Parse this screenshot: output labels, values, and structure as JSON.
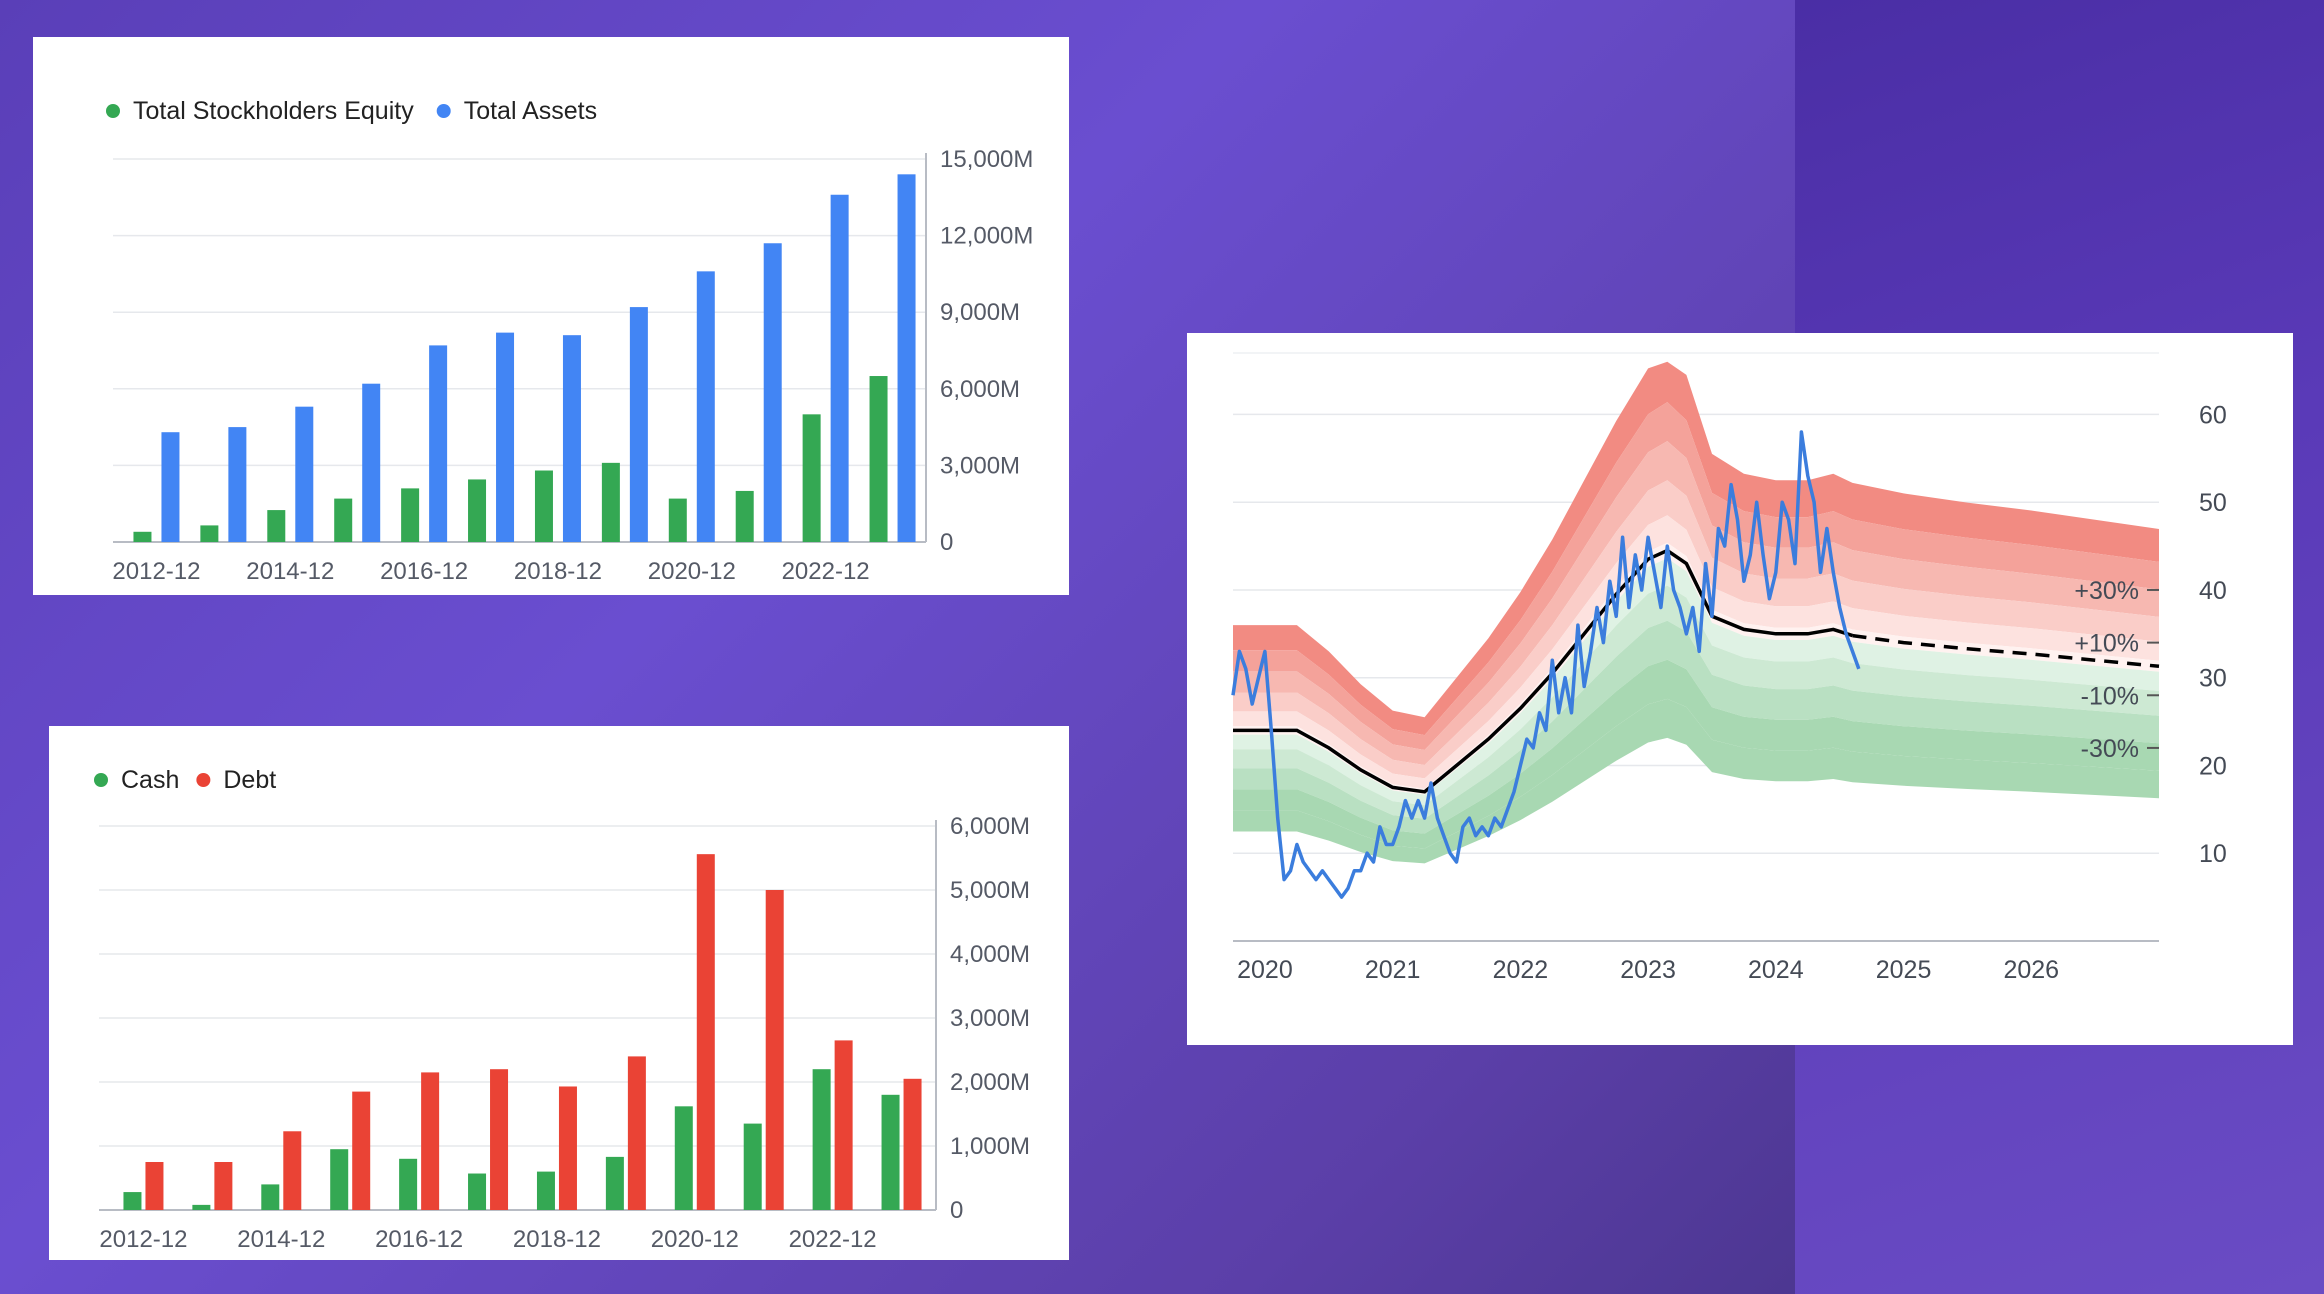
{
  "charts": {
    "equity_assets": {
      "chart_data": {
        "type": "bar",
        "categories": [
          "2012-12",
          "2013-12",
          "2014-12",
          "2015-12",
          "2016-12",
          "2017-12",
          "2018-12",
          "2019-12",
          "2020-12",
          "2021-12",
          "2022-12",
          "2023-12"
        ],
        "x_tick_labels": [
          "2012-12",
          "2014-12",
          "2016-12",
          "2018-12",
          "2020-12",
          "2022-12"
        ],
        "series": [
          {
            "name": "Total Stockholders Equity",
            "color": "#34a853",
            "values": [
              400,
              650,
              1250,
              1700,
              2100,
              2450,
              2800,
              3100,
              1700,
              2000,
              5000,
              6500
            ]
          },
          {
            "name": "Total Assets",
            "color": "#4285f4",
            "values": [
              4300,
              4500,
              5300,
              6200,
              7700,
              8200,
              8100,
              9200,
              10600,
              11700,
              13600,
              14400
            ]
          }
        ],
        "ylim": [
          0,
          15000
        ],
        "y_ticks": [
          0,
          3000,
          6000,
          9000,
          12000,
          15000
        ],
        "y_tick_labels": [
          "0",
          "3,000M",
          "6,000M",
          "9,000M",
          "12,000M",
          "15,000M"
        ],
        "legend_position": "top-left",
        "grid": true
      }
    },
    "cash_debt": {
      "chart_data": {
        "type": "bar",
        "categories": [
          "2012-12",
          "2013-12",
          "2014-12",
          "2015-12",
          "2016-12",
          "2017-12",
          "2018-12",
          "2019-12",
          "2020-12",
          "2021-12",
          "2022-12",
          "2023-12"
        ],
        "x_tick_labels": [
          "2012-12",
          "2014-12",
          "2016-12",
          "2018-12",
          "2020-12",
          "2022-12"
        ],
        "series": [
          {
            "name": "Cash",
            "color": "#34a853",
            "values": [
              280,
              80,
              400,
              950,
              800,
              570,
              600,
              830,
              1620,
              1350,
              2200,
              1800
            ]
          },
          {
            "name": "Debt",
            "color": "#ea4335",
            "values": [
              750,
              750,
              1230,
              1850,
              2150,
              2200,
              1930,
              2400,
              5560,
              5000,
              2650,
              2050
            ]
          }
        ],
        "ylim": [
          0,
          6000
        ],
        "y_ticks": [
          0,
          1000,
          2000,
          3000,
          4000,
          5000,
          6000
        ],
        "y_tick_labels": [
          "0",
          "1,000M",
          "2,000M",
          "3,000M",
          "4,000M",
          "5,000M",
          "6,000M"
        ],
        "legend_position": "top-left",
        "grid": true
      }
    },
    "valuation": {
      "chart_data": {
        "type": "line",
        "xlim": [
          2019.75,
          2027.0
        ],
        "x_ticks": [
          2020,
          2021,
          2022,
          2023,
          2024,
          2025,
          2026
        ],
        "x_tick_labels": [
          "2020",
          "2021",
          "2022",
          "2023",
          "2024",
          "2025",
          "2026"
        ],
        "ylim": [
          0,
          67
        ],
        "y_ticks": [
          10,
          20,
          30,
          40,
          50,
          60
        ],
        "y_tick_labels": [
          "10",
          "20",
          "30",
          "40",
          "50",
          "60"
        ],
        "band_labels": [
          "+30%",
          "+10%",
          "-10%",
          "-30%"
        ],
        "band_values": [
          40,
          34,
          28,
          22
        ],
        "fair_value": {
          "color": "#000000",
          "x": [
            2019.75,
            2020.0,
            2020.25,
            2020.5,
            2020.75,
            2021.0,
            2021.25,
            2021.5,
            2021.75,
            2022.0,
            2022.25,
            2022.5,
            2022.75,
            2023.0,
            2023.15,
            2023.3,
            2023.5,
            2023.75,
            2024.0,
            2024.25,
            2024.45,
            2024.6
          ],
          "y": [
            24,
            24,
            24,
            22,
            19.5,
            17.5,
            17,
            20,
            23,
            26.5,
            30.5,
            35,
            39.5,
            43.5,
            44.5,
            43,
            37,
            35.5,
            35,
            35,
            35.5,
            34.8
          ]
        },
        "projection": {
          "x": [
            2024.6,
            2025.0,
            2025.5,
            2026.0,
            2026.5,
            2027.0
          ],
          "y": [
            34.8,
            34.0,
            33.3,
            32.7,
            32.0,
            31.3
          ]
        },
        "price": {
          "color": "#3b7ddd",
          "x": [
            2019.75,
            2019.8,
            2019.85,
            2019.9,
            2019.95,
            2020.0,
            2020.05,
            2020.1,
            2020.15,
            2020.2,
            2020.25,
            2020.3,
            2020.35,
            2020.4,
            2020.45,
            2020.5,
            2020.55,
            2020.6,
            2020.65,
            2020.7,
            2020.75,
            2020.8,
            2020.85,
            2020.9,
            2020.95,
            2021.0,
            2021.05,
            2021.1,
            2021.15,
            2021.2,
            2021.25,
            2021.3,
            2021.35,
            2021.4,
            2021.45,
            2021.5,
            2021.55,
            2021.6,
            2021.65,
            2021.7,
            2021.75,
            2021.8,
            2021.85,
            2021.9,
            2021.95,
            2022.0,
            2022.05,
            2022.1,
            2022.15,
            2022.2,
            2022.25,
            2022.3,
            2022.35,
            2022.4,
            2022.45,
            2022.5,
            2022.55,
            2022.6,
            2022.65,
            2022.7,
            2022.75,
            2022.8,
            2022.85,
            2022.9,
            2022.95,
            2023.0,
            2023.05,
            2023.1,
            2023.15,
            2023.2,
            2023.25,
            2023.3,
            2023.35,
            2023.4,
            2023.45,
            2023.5,
            2023.55,
            2023.6,
            2023.65,
            2023.7,
            2023.75,
            2023.8,
            2023.85,
            2023.9,
            2023.95,
            2024.0,
            2024.05,
            2024.1,
            2024.15,
            2024.2,
            2024.25,
            2024.3,
            2024.35,
            2024.4,
            2024.45,
            2024.5,
            2024.55,
            2024.6,
            2024.65
          ],
          "y": [
            28,
            33,
            31,
            27,
            30,
            33,
            24,
            14,
            7,
            8,
            11,
            9,
            8,
            7,
            8,
            7,
            6,
            5,
            6,
            8,
            8,
            10,
            9,
            13,
            11,
            11,
            13,
            16,
            14,
            16,
            14,
            18,
            14,
            12,
            10,
            9,
            13,
            14,
            12,
            13,
            12,
            14,
            13,
            15,
            17,
            20,
            23,
            22,
            26,
            24,
            32,
            26,
            30,
            26,
            36,
            29,
            33,
            38,
            34,
            41,
            37,
            46,
            38,
            44,
            40,
            46,
            42,
            38,
            45,
            40,
            38,
            35,
            38,
            33,
            43,
            37,
            47,
            45,
            52,
            48,
            41,
            44,
            50,
            44,
            39,
            42,
            50,
            48,
            43,
            58,
            53,
            50,
            42,
            47,
            42,
            38,
            35,
            33,
            31
          ]
        }
      }
    }
  }
}
